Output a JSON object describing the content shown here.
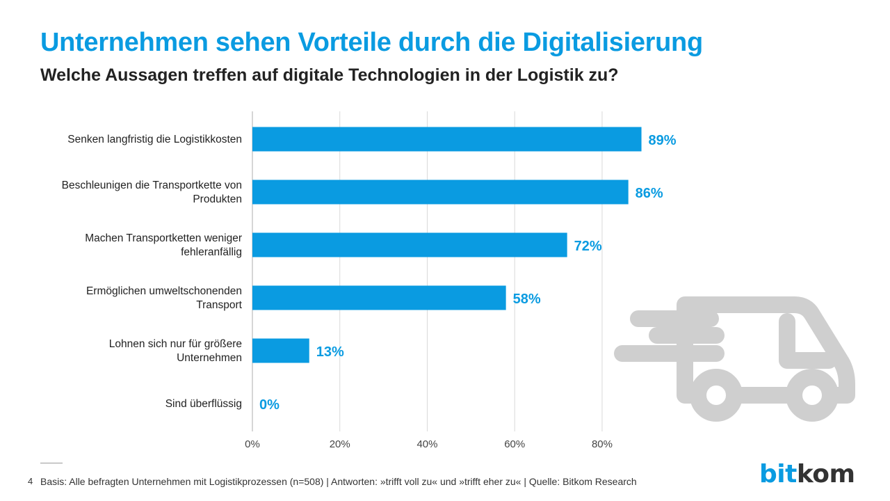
{
  "page": {
    "title": "Unternehmen sehen Vorteile durch die Digitalisierung",
    "subtitle": "Welche Aussagen treffen auf digitale Technologien in der Logistik zu?",
    "page_number": "4",
    "footnote": "Basis: Alle befragten Unternehmen mit Logistikprozessen (n=508) | Antworten: »trifft voll zu« und »trifft eher zu« | Quelle: Bitkom Research",
    "logo": {
      "part1": "bit",
      "part2": "kom"
    }
  },
  "colors": {
    "accent": "#0a9be1",
    "bar": "#0a9be1",
    "grid": "#d9d9d9",
    "truck_icon": "#cfcfcf"
  },
  "icons": {
    "decoration": "delivery-truck-icon"
  },
  "chart_data": {
    "type": "bar",
    "orientation": "horizontal",
    "categories": [
      [
        "Senken langfristig die Logistikkosten"
      ],
      [
        "Beschleunigen die Transportkette von",
        "Produkten"
      ],
      [
        "Machen Transportketten weniger",
        "fehleranfällig"
      ],
      [
        "Ermöglichen umweltschonenden",
        "Transport"
      ],
      [
        "Lohnen sich nur für größere",
        "Unternehmen"
      ],
      [
        "Sind überflüssig"
      ]
    ],
    "values": [
      89,
      86,
      72,
      58,
      13,
      0
    ],
    "value_labels": [
      "89%",
      "86%",
      "72%",
      "58%",
      "13%",
      "0%"
    ],
    "xlim": [
      0,
      100
    ],
    "xticks": [
      0,
      20,
      40,
      60,
      80
    ],
    "xtick_labels": [
      "0%",
      "20%",
      "40%",
      "60%",
      "80%"
    ],
    "grid": true,
    "legend": "none"
  }
}
